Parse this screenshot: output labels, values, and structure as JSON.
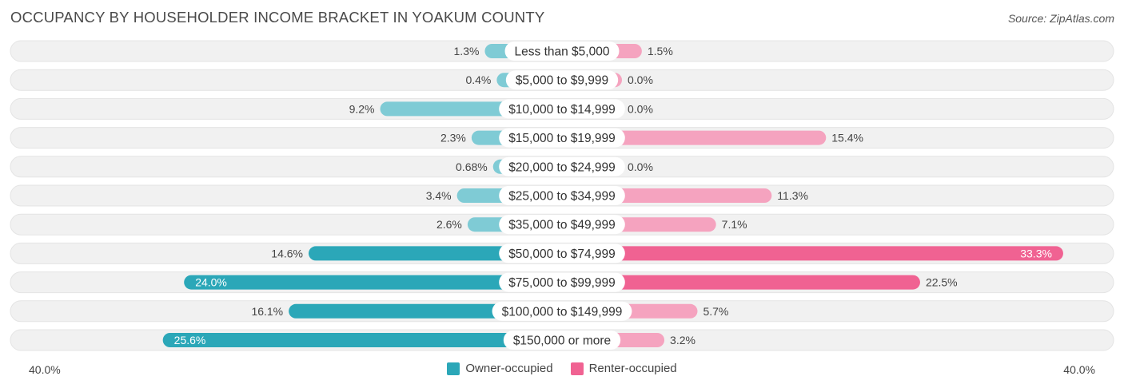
{
  "header": {
    "title": "OCCUPANCY BY HOUSEHOLDER INCOME BRACKET IN YOAKUM COUNTY",
    "source": "Source: ZipAtlas.com"
  },
  "axis": {
    "left_label": "40.0%",
    "right_label": "40.0%"
  },
  "legend": {
    "owner_label": "Owner-occupied",
    "renter_label": "Renter-occupied"
  },
  "colors": {
    "owner": "#2ba7b8",
    "owner_light": "#7fcbd5",
    "renter": "#f06292",
    "renter_light": "#f5a3bf",
    "track": "#f1f1f1"
  },
  "chart_data": {
    "type": "bar",
    "orientation": "horizontal-diverging",
    "title": "OCCUPANCY BY HOUSEHOLDER INCOME BRACKET IN YOAKUM COUNTY",
    "xlim": [
      -40,
      40
    ],
    "categories": [
      "Less than $5,000",
      "$5,000 to $9,999",
      "$10,000 to $14,999",
      "$15,000 to $19,999",
      "$20,000 to $24,999",
      "$25,000 to $34,999",
      "$35,000 to $49,999",
      "$50,000 to $74,999",
      "$75,000 to $99,999",
      "$100,000 to $149,999",
      "$150,000 or more"
    ],
    "series": [
      {
        "name": "Owner-occupied",
        "values": [
          1.3,
          0.4,
          9.2,
          2.3,
          0.68,
          3.4,
          2.6,
          14.6,
          24.0,
          16.1,
          25.6
        ],
        "labels": [
          "1.3%",
          "0.4%",
          "9.2%",
          "2.3%",
          "0.68%",
          "3.4%",
          "2.6%",
          "14.6%",
          "24.0%",
          "16.1%",
          "25.6%"
        ]
      },
      {
        "name": "Renter-occupied",
        "values": [
          1.5,
          0.0,
          0.0,
          15.4,
          0.0,
          11.3,
          7.1,
          33.3,
          22.5,
          5.7,
          3.2
        ],
        "labels": [
          "1.5%",
          "0.0%",
          "0.0%",
          "15.4%",
          "0.0%",
          "11.3%",
          "7.1%",
          "33.3%",
          "22.5%",
          "5.7%",
          "3.2%"
        ]
      }
    ],
    "legend_position": "bottom-center",
    "grid": false
  }
}
